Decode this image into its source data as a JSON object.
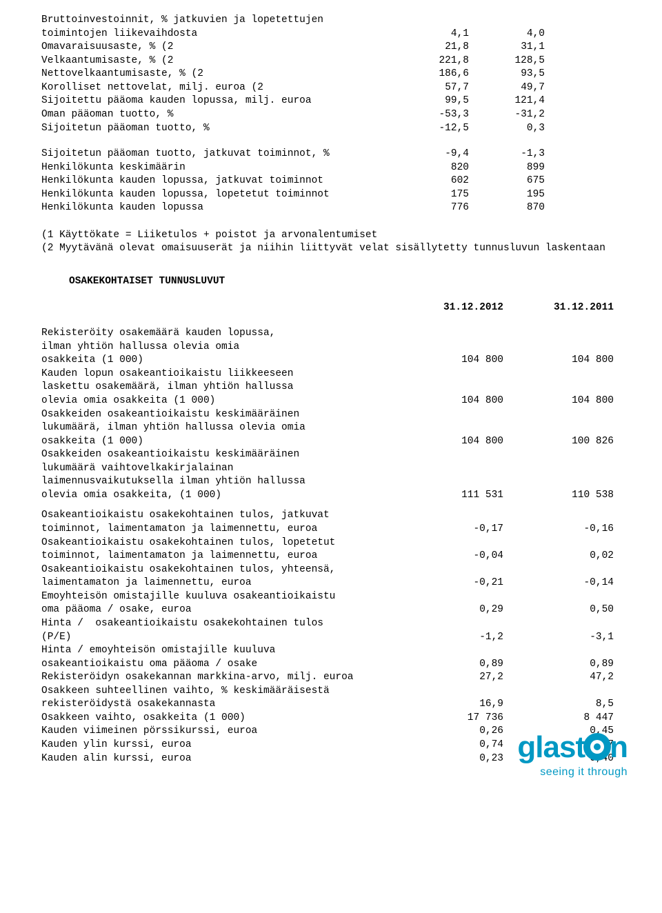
{
  "top_rows": [
    {
      "label": "Bruttoinvestoinnit, % jatkuvien ja lopetettujen\ntoimintojen liikevaihdosta",
      "v1": "4,1",
      "v2": "4,0"
    },
    {
      "label": "Omavaraisuusaste, % (2",
      "v1": "21,8",
      "v2": "31,1"
    },
    {
      "label": "Velkaantumisaste, % (2",
      "v1": "221,8",
      "v2": "128,5"
    },
    {
      "label": "Nettovelkaantumisaste, % (2",
      "v1": "186,6",
      "v2": "93,5"
    },
    {
      "label": "Korolliset nettovelat, milj. euroa (2",
      "v1": "57,7",
      "v2": "49,7"
    },
    {
      "label": "Sijoitettu pääoma kauden lopussa, milj. euroa",
      "v1": "99,5",
      "v2": "121,4"
    },
    {
      "label": "Oman pääoman tuotto, %",
      "v1": "-53,3",
      "v2": "-31,2"
    },
    {
      "label": "Sijoitetun pääoman tuotto, %",
      "v1": "-12,5",
      "v2": "0,3"
    }
  ],
  "mid_rows": [
    {
      "label": "Sijoitetun pääoman tuotto, jatkuvat toiminnot, %",
      "v1": "-9,4",
      "v2": "-1,3"
    },
    {
      "label": "Henkilökunta keskimäärin",
      "v1": "820",
      "v2": "899"
    },
    {
      "label": "Henkilökunta kauden lopussa, jatkuvat toiminnot",
      "v1": "602",
      "v2": "675"
    },
    {
      "label": "Henkilökunta kauden lopussa, lopetetut toiminnot",
      "v1": "175",
      "v2": "195"
    },
    {
      "label": "Henkilökunta kauden lopussa",
      "v1": "776",
      "v2": "870"
    }
  ],
  "footnote1": "(1 Käyttökate = Liiketulos + poistot ja arvonalentumiset",
  "footnote2": "(2 Myytävänä olevat omaisuuserät ja niihin liittyvät velat sisällytetty tunnusluvun laskentaan",
  "share_title": "OSAKEKOHTAISET TUNNUSLUVUT",
  "share_headers": {
    "h1": "31.12.2012",
    "h2": "31.12.2011"
  },
  "share_rows": [
    {
      "label": "Rekisteröity osakemäärä kauden lopussa,\nilman yhtiön hallussa olevia omia\nosakkeita (1 000)",
      "v1": "104 800",
      "v2": "104 800"
    },
    {
      "label": "Kauden lopun osakeantioikaistu liikkeeseen\nlaskettu osakemäärä, ilman yhtiön hallussa\nolevia omia osakkeita (1 000)",
      "v1": "104 800",
      "v2": "104 800"
    },
    {
      "label": "Osakkeiden osakeantioikaistu keskimääräinen\nlukumäärä, ilman yhtiön hallussa olevia omia\nosakkeita (1 000)",
      "v1": "104 800",
      "v2": "100 826"
    },
    {
      "label": "Osakkeiden osakeantioikaistu keskimääräinen\nlukumäärä vaihtovelkakirjalainan\nlaimennusvaikutuksella ilman yhtiön hallussa\nolevia omia osakkeita, (1 000)",
      "v1": "111 531",
      "v2": "110 538"
    }
  ],
  "share_rows2": [
    {
      "label": "Osakeantioikaistu osakekohtainen tulos, jatkuvat\ntoiminnot, laimentamaton ja laimennettu, euroa",
      "v1": "-0,17",
      "v2": "-0,16"
    },
    {
      "label": "Osakeantioikaistu osakekohtainen tulos, lopetetut\ntoiminnot, laimentamaton ja laimennettu, euroa",
      "v1": "-0,04",
      "v2": "0,02"
    },
    {
      "label": "Osakeantioikaistu osakekohtainen tulos, yhteensä,\nlaimentamaton ja laimennettu, euroa",
      "v1": "-0,21",
      "v2": "-0,14"
    },
    {
      "label": "Emoyhteisön omistajille kuuluva osakeantioikaistu\noma pääoma / osake, euroa",
      "v1": "0,29",
      "v2": "0,50"
    },
    {
      "label": "Hinta /  osakeantioikaistu osakekohtainen tulos\n(P/E)",
      "v1": "-1,2",
      "v2": "-3,1"
    },
    {
      "label": "Hinta / emoyhteisön omistajille kuuluva\nosakeantioikaistu oma pääoma / osake",
      "v1": "0,89",
      "v2": "0,89"
    },
    {
      "label": "Rekisteröidyn osakekannan markkina-arvo, milj. euroa",
      "v1": "27,2",
      "v2": "47,2"
    },
    {
      "label": "Osakkeen suhteellinen vaihto, % keskimääräisestä\nrekisteröidystä osakekannasta",
      "v1": "16,9",
      "v2": "8,5"
    },
    {
      "label": "Osakkeen vaihto, osakkeita (1 000)",
      "v1": "17 736",
      "v2": "8 447"
    },
    {
      "label": "Kauden viimeinen pörssikurssi, euroa",
      "v1": "0,26",
      "v2": "0,45"
    },
    {
      "label": "Kauden ylin kurssi, euroa",
      "v1": "0,74",
      "v2": "1,27"
    },
    {
      "label": "Kauden alin kurssi, euroa",
      "v1": "0,23",
      "v2": "0,40"
    }
  ],
  "logo": {
    "main_left": "glast",
    "main_right": "n",
    "sub": "seeing it through",
    "color": "#0098c3"
  }
}
